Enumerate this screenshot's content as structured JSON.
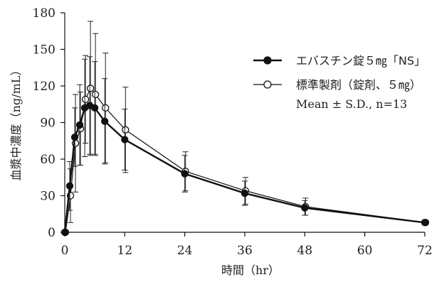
{
  "chart_data": {
    "type": "line",
    "xlabel": "時間（hr）",
    "ylabel": "血漿中濃度（ng/mL）",
    "xlim": [
      0,
      72
    ],
    "ylim": [
      0,
      180
    ],
    "xticks": [
      "0",
      "12",
      "24",
      "36",
      "48",
      "60",
      "72"
    ],
    "yticks": [
      "0",
      "30",
      "60",
      "90",
      "120",
      "150",
      "180"
    ],
    "grid": false,
    "legend_position": "right",
    "legend_note": "Mean ± S.D., n=13",
    "series": [
      {
        "name": "エバスチン錠５㎎「NS」",
        "marker": "filled-circle",
        "color": "#111111",
        "x": [
          0,
          1,
          2,
          3,
          4,
          5,
          6,
          8,
          12,
          24,
          36,
          48,
          72
        ],
        "y": [
          0,
          38,
          78,
          88,
          102,
          104,
          102,
          91,
          76,
          48,
          32,
          20,
          8
        ],
        "error": [
          0,
          20,
          24,
          33,
          40,
          40,
          38,
          35,
          25,
          15,
          10,
          6,
          2
        ]
      },
      {
        "name": "標準製剤（錠剤、５㎎）",
        "marker": "open-circle",
        "color": "#111111",
        "x": [
          0,
          1,
          2,
          3,
          4,
          5,
          6,
          8,
          12,
          24,
          36,
          48,
          72
        ],
        "y": [
          0,
          30,
          73,
          85,
          109,
          118,
          113,
          102,
          84,
          50,
          34,
          21,
          8
        ],
        "error": [
          0,
          22,
          40,
          30,
          36,
          55,
          50,
          45,
          35,
          16,
          11,
          7,
          2
        ]
      }
    ]
  }
}
